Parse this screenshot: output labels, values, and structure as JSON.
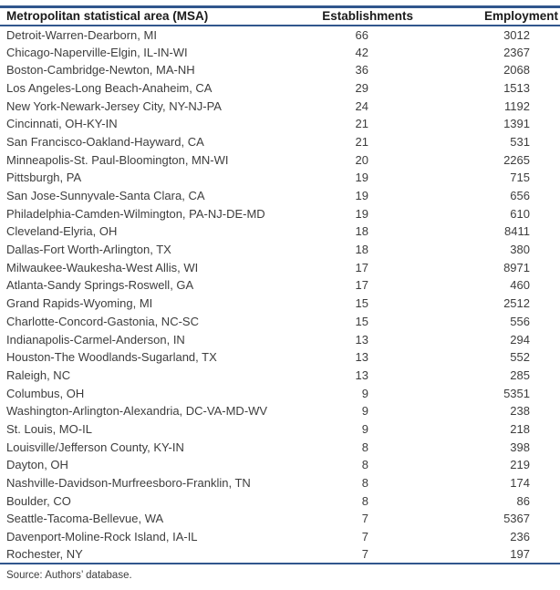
{
  "table": {
    "columns": [
      {
        "label": "Metropolitan statistical area (MSA)"
      },
      {
        "label": "Establishments"
      },
      {
        "label": "Employment"
      }
    ],
    "rows": [
      {
        "msa": "Detroit-Warren-Dearborn, MI",
        "establishments": 66,
        "employment": 3012
      },
      {
        "msa": "Chicago-Naperville-Elgin, IL-IN-WI",
        "establishments": 42,
        "employment": 2367
      },
      {
        "msa": "Boston-Cambridge-Newton, MA-NH",
        "establishments": 36,
        "employment": 2068
      },
      {
        "msa": "Los Angeles-Long Beach-Anaheim, CA",
        "establishments": 29,
        "employment": 1513
      },
      {
        "msa": "New York-Newark-Jersey City, NY-NJ-PA",
        "establishments": 24,
        "employment": 1192
      },
      {
        "msa": "Cincinnati, OH-KY-IN",
        "establishments": 21,
        "employment": 1391
      },
      {
        "msa": "San Francisco-Oakland-Hayward, CA",
        "establishments": 21,
        "employment": 531
      },
      {
        "msa": "Minneapolis-St. Paul-Bloomington, MN-WI",
        "establishments": 20,
        "employment": 2265
      },
      {
        "msa": "Pittsburgh, PA",
        "establishments": 19,
        "employment": 715
      },
      {
        "msa": "San Jose-Sunnyvale-Santa Clara, CA",
        "establishments": 19,
        "employment": 656
      },
      {
        "msa": "Philadelphia-Camden-Wilmington, PA-NJ-DE-MD",
        "establishments": 19,
        "employment": 610
      },
      {
        "msa": "Cleveland-Elyria, OH",
        "establishments": 18,
        "employment": 8411
      },
      {
        "msa": "Dallas-Fort Worth-Arlington, TX",
        "establishments": 18,
        "employment": 380
      },
      {
        "msa": "Milwaukee-Waukesha-West Allis, WI",
        "establishments": 17,
        "employment": 8971
      },
      {
        "msa": "Atlanta-Sandy Springs-Roswell, GA",
        "establishments": 17,
        "employment": 460
      },
      {
        "msa": "Grand Rapids-Wyoming, MI",
        "establishments": 15,
        "employment": 2512
      },
      {
        "msa": "Charlotte-Concord-Gastonia, NC-SC",
        "establishments": 15,
        "employment": 556
      },
      {
        "msa": "Indianapolis-Carmel-Anderson, IN",
        "establishments": 13,
        "employment": 294
      },
      {
        "msa": "Houston-The Woodlands-Sugarland, TX",
        "establishments": 13,
        "employment": 552
      },
      {
        "msa": "Raleigh, NC",
        "establishments": 13,
        "employment": 285
      },
      {
        "msa": "Columbus, OH",
        "establishments": 9,
        "employment": 5351
      },
      {
        "msa": "Washington-Arlington-Alexandria, DC-VA-MD-WV",
        "establishments": 9,
        "employment": 238
      },
      {
        "msa": "St. Louis, MO-IL",
        "establishments": 9,
        "employment": 218
      },
      {
        "msa": "Louisville/Jefferson County, KY-IN",
        "establishments": 8,
        "employment": 398
      },
      {
        "msa": "Dayton, OH",
        "establishments": 8,
        "employment": 219
      },
      {
        "msa": "Nashville-Davidson-Murfreesboro-Franklin, TN",
        "establishments": 8,
        "employment": 174
      },
      {
        "msa": "Boulder, CO",
        "establishments": 8,
        "employment": 86
      },
      {
        "msa": "Seattle-Tacoma-Bellevue, WA",
        "establishments": 7,
        "employment": 5367
      },
      {
        "msa": "Davenport-Moline-Rock Island, IA-IL",
        "establishments": 7,
        "employment": 236
      },
      {
        "msa": "Rochester, NY",
        "establishments": 7,
        "employment": 197
      }
    ],
    "source": "Source: Authors’ database."
  },
  "colors": {
    "table_border": "#31568D",
    "header_text": "#1a1a1a",
    "body_text": "#3d3d3d"
  }
}
